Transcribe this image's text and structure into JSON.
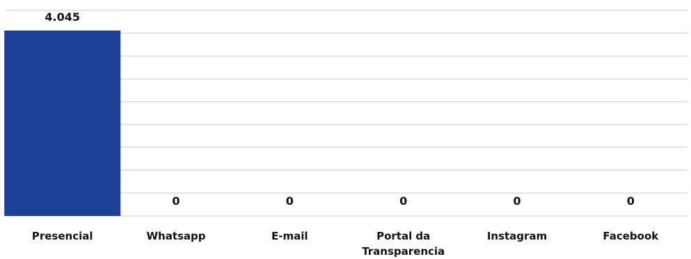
{
  "chart_data": {
    "type": "bar",
    "categories": [
      "Presencial",
      "Whatsapp",
      "E-mail",
      "Portal da Transparencia",
      "Instagram",
      "Facebook"
    ],
    "category_lines": [
      [
        "Presencial"
      ],
      [
        "Whatsapp"
      ],
      [
        "E-mail"
      ],
      [
        "Portal da",
        "Transparencia"
      ],
      [
        "Instagram"
      ],
      [
        "Facebook"
      ]
    ],
    "values": [
      4045,
      0,
      0,
      0,
      0,
      0
    ],
    "data_labels": [
      "4.045",
      "0",
      "0",
      "0",
      "0",
      "0"
    ],
    "title": "",
    "xlabel": "",
    "ylabel": "",
    "ylim": [
      0,
      4500
    ],
    "grid": true,
    "legend": "none",
    "colors": {
      "bar": "#1b4096",
      "grid": "#d9d9d9"
    }
  }
}
